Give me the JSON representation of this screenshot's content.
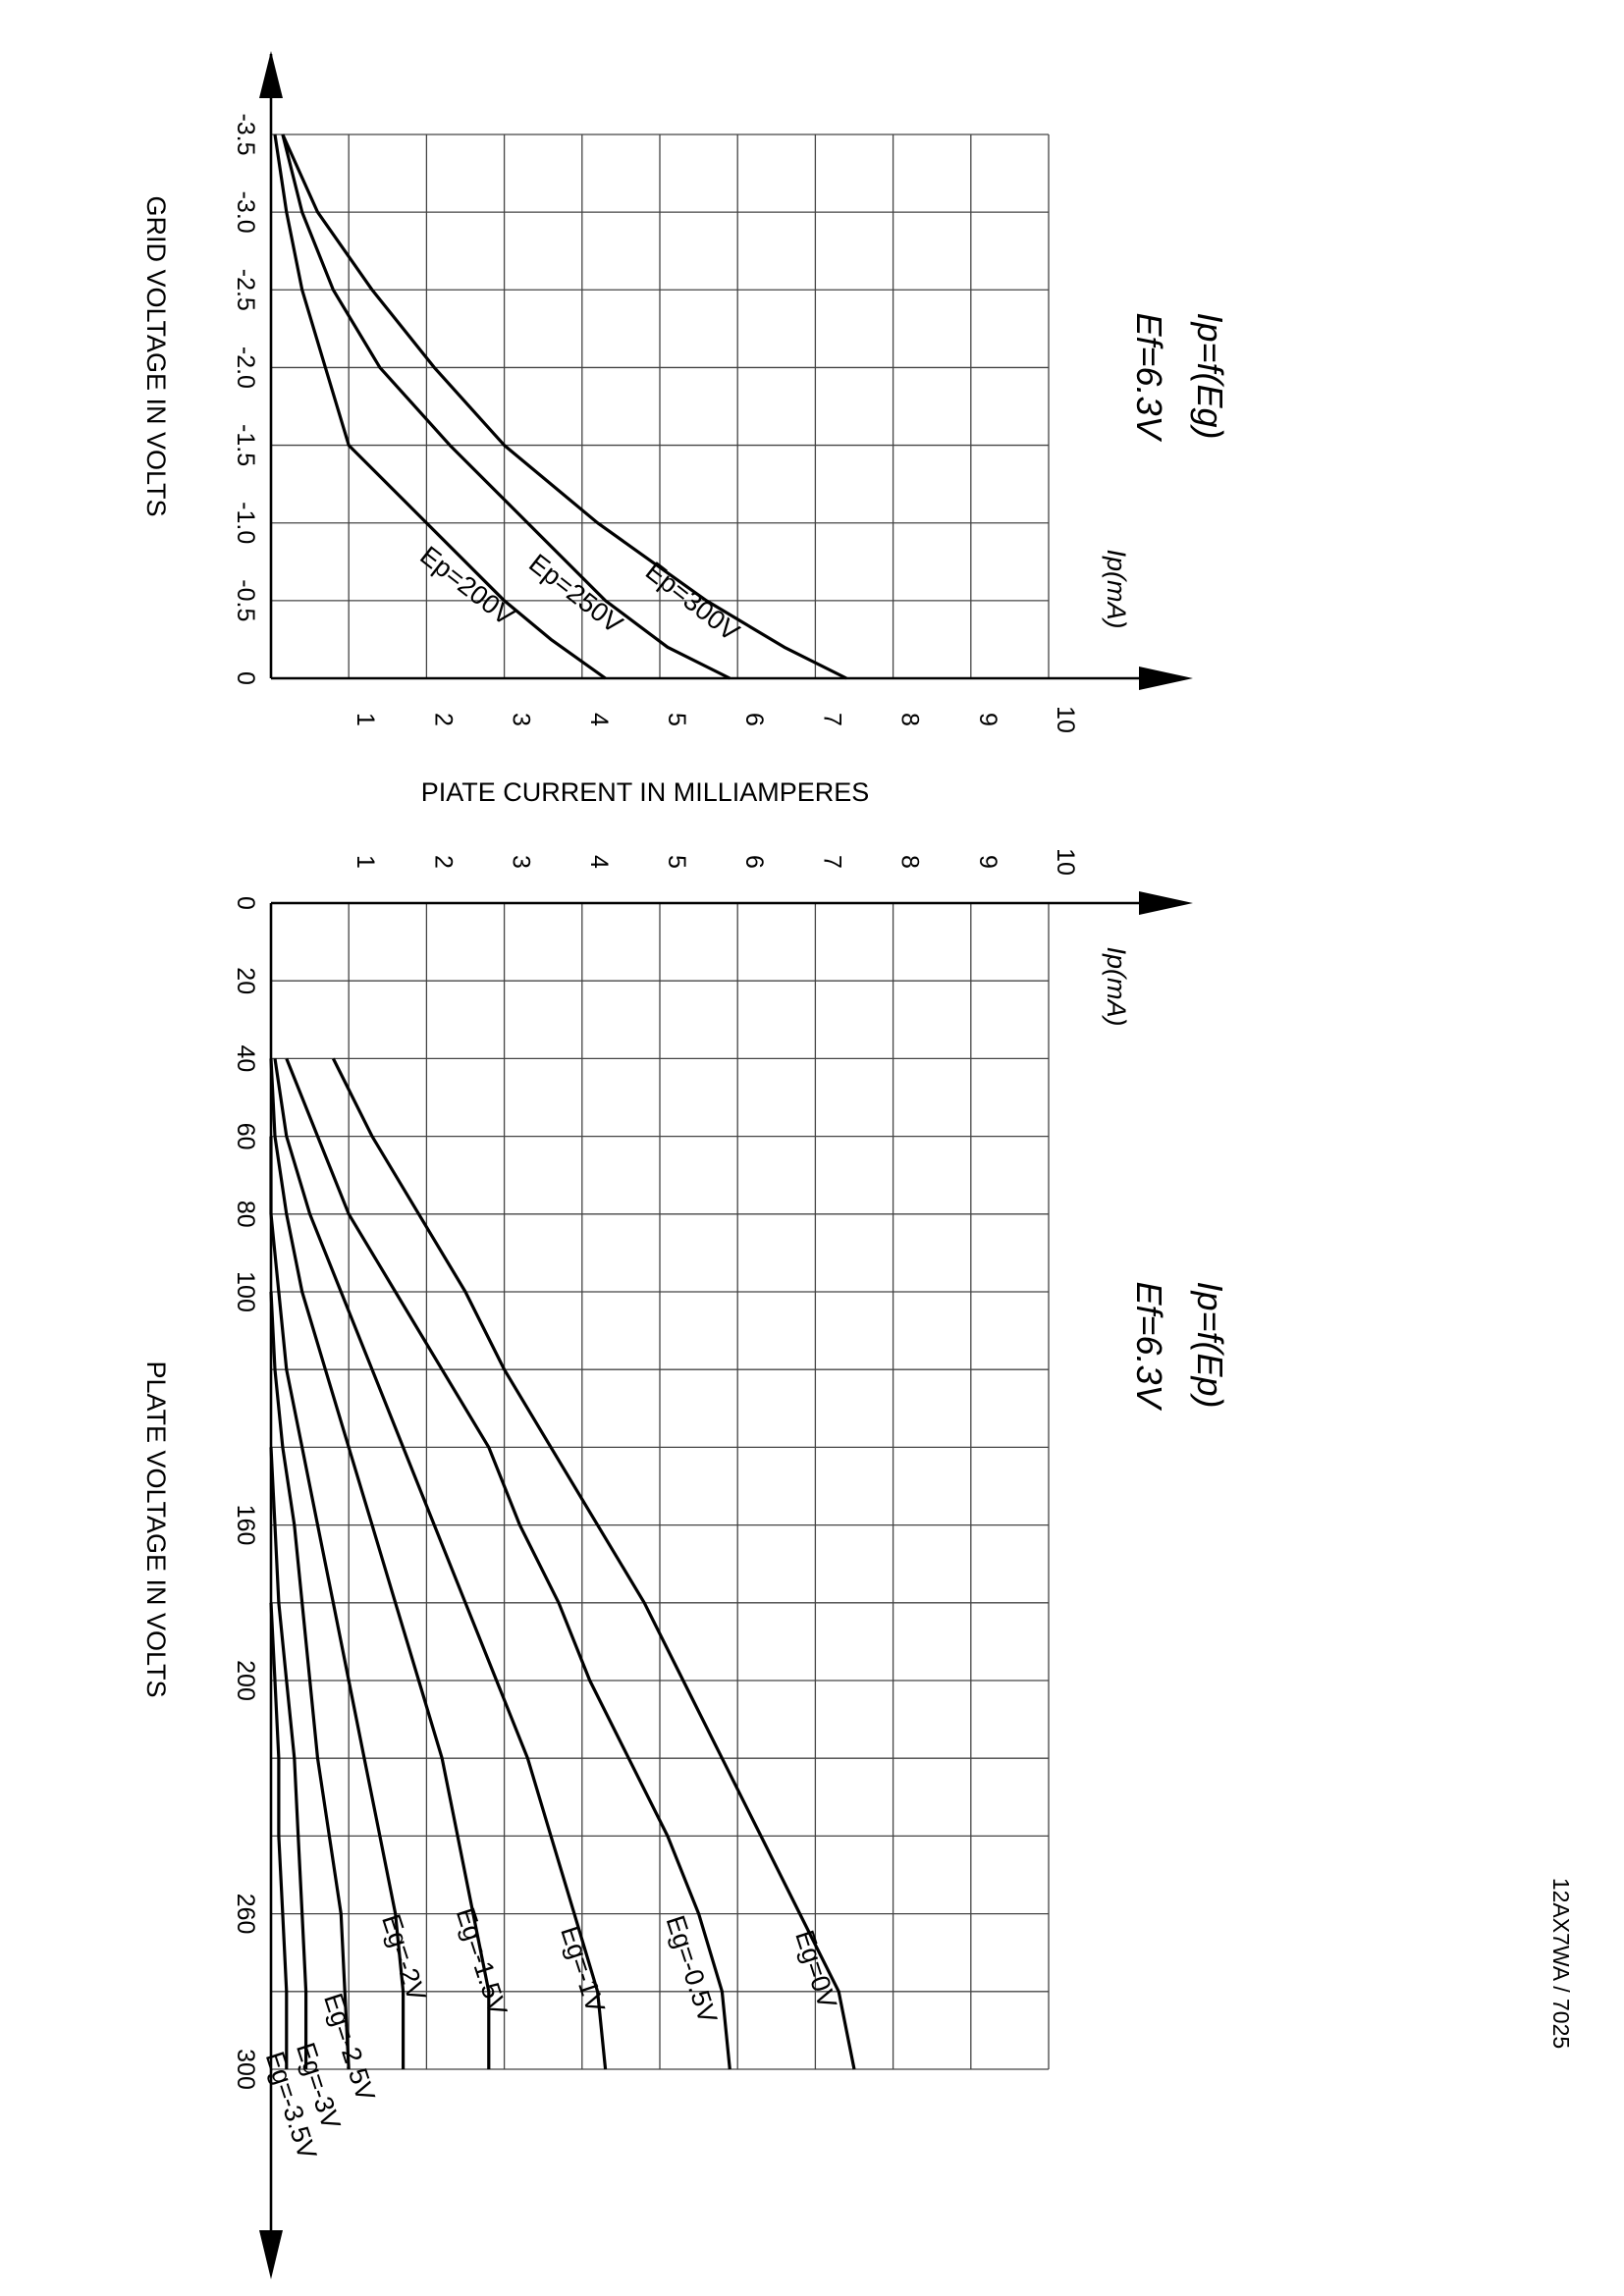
{
  "footer": "12AX7WA / 7025",
  "shared_xlabel": "PIATE CURRENT IN MILLIAMPERES",
  "chart_data": [
    {
      "type": "line",
      "title": "Ip=f(Eg)",
      "subtitle": "Ef=6.3V",
      "x_unit_label": "Ip(mA)",
      "xlabel": "PIATE CURRENT IN MILLIAMPERES",
      "ylabel": "GRID VOLTAGE IN VOLTS",
      "xlim": [
        0,
        10
      ],
      "ylim": [
        -3.5,
        0
      ],
      "x_ticks": [
        "1",
        "2",
        "3",
        "4",
        "5",
        "6",
        "7",
        "8",
        "9",
        "10"
      ],
      "y_ticks": [
        "-3.5",
        "-3.0",
        "-2.5",
        "-2.0",
        "-1.5",
        "-1.0",
        "-0.5",
        "0"
      ],
      "grid": true,
      "series": [
        {
          "name": "Ep=200V",
          "points": [
            [
              0.05,
              -3.5
            ],
            [
              0.2,
              -3.0
            ],
            [
              0.4,
              -2.5
            ],
            [
              0.7,
              -2.0
            ],
            [
              1.0,
              -1.5
            ],
            [
              2.0,
              -1.0
            ],
            [
              3.0,
              -0.5
            ],
            [
              3.6,
              -0.25
            ],
            [
              4.3,
              0
            ]
          ]
        },
        {
          "name": "Ep=250V",
          "points": [
            [
              0.15,
              -3.5
            ],
            [
              0.4,
              -3.0
            ],
            [
              0.8,
              -2.5
            ],
            [
              1.4,
              -2.0
            ],
            [
              2.3,
              -1.5
            ],
            [
              3.3,
              -1.0
            ],
            [
              4.3,
              -0.5
            ],
            [
              5.1,
              -0.2
            ],
            [
              5.9,
              0
            ]
          ]
        },
        {
          "name": "Ep=300V",
          "points": [
            [
              0.15,
              -3.5
            ],
            [
              0.6,
              -3.0
            ],
            [
              1.3,
              -2.5
            ],
            [
              2.1,
              -2.0
            ],
            [
              3.0,
              -1.5
            ],
            [
              4.2,
              -1.0
            ],
            [
              5.6,
              -0.5
            ],
            [
              6.6,
              -0.2
            ],
            [
              7.4,
              0
            ]
          ]
        }
      ]
    },
    {
      "type": "line",
      "title": "Ip=f(Ep)",
      "subtitle": "Ef=6.3V",
      "x_unit_label": "Ip(mA)",
      "xlabel": "PIATE CURRENT IN MILLIAMPERES",
      "ylabel": "PLATE VOLTAGE IN VOLTS",
      "xlim": [
        0,
        10
      ],
      "ylim": [
        0,
        300
      ],
      "x_ticks": [
        "1",
        "2",
        "3",
        "4",
        "5",
        "6",
        "7",
        "8",
        "9",
        "10"
      ],
      "y_ticks": [
        "0",
        "20",
        "40",
        "60",
        "80",
        "100",
        "160",
        "200",
        "260",
        "300"
      ],
      "grid": true,
      "series": [
        {
          "name": "Eg=0V",
          "points": [
            [
              0.8,
              40
            ],
            [
              1.3,
              60
            ],
            [
              1.9,
              80
            ],
            [
              2.5,
              100
            ],
            [
              3.0,
              120
            ],
            [
              3.6,
              140
            ],
            [
              4.2,
              160
            ],
            [
              4.8,
              180
            ],
            [
              5.3,
              200
            ],
            [
              5.8,
              220
            ],
            [
              6.3,
              240
            ],
            [
              6.8,
              260
            ],
            [
              7.3,
              280
            ],
            [
              7.5,
              300
            ]
          ]
        },
        {
          "name": "Eg=-0.5V",
          "points": [
            [
              0.2,
              40
            ],
            [
              0.6,
              60
            ],
            [
              1.0,
              80
            ],
            [
              1.6,
              100
            ],
            [
              2.2,
              120
            ],
            [
              2.8,
              140
            ],
            [
              3.2,
              160
            ],
            [
              3.7,
              180
            ],
            [
              4.1,
              200
            ],
            [
              4.6,
              220
            ],
            [
              5.1,
              240
            ],
            [
              5.5,
              260
            ],
            [
              5.8,
              280
            ],
            [
              5.9,
              300
            ]
          ]
        },
        {
          "name": "Eg=-1V",
          "points": [
            [
              0.05,
              40
            ],
            [
              0.2,
              60
            ],
            [
              0.5,
              80
            ],
            [
              0.9,
              100
            ],
            [
              1.3,
              120
            ],
            [
              1.7,
              140
            ],
            [
              2.1,
              160
            ],
            [
              2.5,
              180
            ],
            [
              2.9,
              200
            ],
            [
              3.3,
              220
            ],
            [
              3.6,
              240
            ],
            [
              3.9,
              260
            ],
            [
              4.2,
              280
            ],
            [
              4.3,
              300
            ]
          ]
        },
        {
          "name": "Eg=-1.5V",
          "points": [
            [
              0,
              40
            ],
            [
              0.05,
              60
            ],
            [
              0.2,
              80
            ],
            [
              0.4,
              100
            ],
            [
              0.7,
              120
            ],
            [
              1.0,
              140
            ],
            [
              1.3,
              160
            ],
            [
              1.6,
              180
            ],
            [
              1.9,
              200
            ],
            [
              2.2,
              220
            ],
            [
              2.4,
              240
            ],
            [
              2.6,
              260
            ],
            [
              2.8,
              280
            ],
            [
              2.8,
              300
            ]
          ]
        },
        {
          "name": "Eg=-2V",
          "points": [
            [
              0,
              60
            ],
            [
              0,
              80
            ],
            [
              0.1,
              100
            ],
            [
              0.2,
              120
            ],
            [
              0.4,
              140
            ],
            [
              0.6,
              160
            ],
            [
              0.8,
              180
            ],
            [
              1.0,
              200
            ],
            [
              1.2,
              220
            ],
            [
              1.4,
              240
            ],
            [
              1.6,
              260
            ],
            [
              1.7,
              280
            ],
            [
              1.7,
              300
            ]
          ]
        },
        {
          "name": "Eg=-2.5V",
          "points": [
            [
              0,
              100
            ],
            [
              0.05,
              120
            ],
            [
              0.15,
              140
            ],
            [
              0.3,
              160
            ],
            [
              0.4,
              180
            ],
            [
              0.5,
              200
            ],
            [
              0.6,
              220
            ],
            [
              0.75,
              240
            ],
            [
              0.9,
              260
            ],
            [
              0.95,
              280
            ],
            [
              1.0,
              300
            ]
          ]
        },
        {
          "name": "Eg=-3V",
          "points": [
            [
              0,
              140
            ],
            [
              0.05,
              160
            ],
            [
              0.1,
              180
            ],
            [
              0.2,
              200
            ],
            [
              0.3,
              220
            ],
            [
              0.35,
              240
            ],
            [
              0.4,
              260
            ],
            [
              0.45,
              280
            ],
            [
              0.45,
              300
            ]
          ]
        },
        {
          "name": "Eg=-3.5V",
          "points": [
            [
              0,
              180
            ],
            [
              0.05,
              200
            ],
            [
              0.1,
              220
            ],
            [
              0.1,
              240
            ],
            [
              0.15,
              260
            ],
            [
              0.2,
              280
            ],
            [
              0.2,
              300
            ]
          ]
        }
      ]
    }
  ]
}
